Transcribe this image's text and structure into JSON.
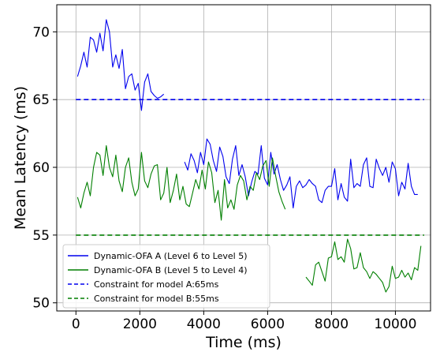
{
  "chart_data": {
    "type": "line",
    "xlabel": "Time (ms)",
    "ylabel": "Mean Latency (ms)",
    "xlim": [
      -600,
      11100
    ],
    "ylim": [
      49.4,
      72.0
    ],
    "xticks": [
      0,
      2000,
      4000,
      6000,
      8000,
      10000
    ],
    "yticks": [
      50,
      55,
      60,
      65,
      70
    ],
    "grid": true,
    "legend_position": "lower-left",
    "series": [
      {
        "name": "Dynamic-OFA A (Level 6 to Level 5)",
        "color": "#0000ee",
        "style": "solid",
        "segments": [
          {
            "x": [
              50,
              150,
              250,
              350,
              450,
              550,
              650,
              750,
              850,
              950,
              1050,
              1150,
              1250,
              1350,
              1450,
              1550,
              1650,
              1750,
              1850,
              1950,
              2050,
              2150,
              2250,
              2350,
              2450,
              2550,
              2650,
              2750
            ],
            "y": [
              66.7,
              67.5,
              68.5,
              67.4,
              69.6,
              69.4,
              68.5,
              69.9,
              68.6,
              70.9,
              70.0,
              67.4,
              68.3,
              67.3,
              68.7,
              65.8,
              66.7,
              66.9,
              65.7,
              66.2,
              64.2,
              66.3,
              66.9,
              65.6,
              65.3,
              65.1,
              65.2,
              65.4
            ]
          },
          {
            "x": [
              3400,
              3500,
              3600,
              3700,
              3800,
              3900,
              4000,
              4100,
              4200,
              4300,
              4400,
              4500,
              4600,
              4700,
              4800,
              4900,
              5000,
              5100,
              5200,
              5300,
              5400,
              5500,
              5600,
              5700,
              5800,
              5900,
              6000,
              6100,
              6200,
              6300,
              6400,
              6500,
              6600,
              6700,
              6800,
              6900,
              7000,
              7100,
              7200,
              7300,
              7400,
              7500,
              7600,
              7700,
              7800,
              7900,
              8000,
              8100,
              8200,
              8300,
              8400,
              8500,
              8600,
              8700,
              8800,
              8900,
              9000,
              9100,
              9200,
              9300,
              9400,
              9500,
              9600,
              9700,
              9800,
              9900,
              10000,
              10100,
              10200,
              10300,
              10400,
              10500,
              10600,
              10700
            ],
            "y": [
              60.4,
              59.8,
              61.0,
              60.5,
              59.6,
              61.1,
              60.2,
              62.1,
              61.7,
              60.5,
              59.7,
              61.5,
              60.8,
              59.3,
              58.8,
              60.6,
              61.6,
              59.4,
              60.2,
              59.3,
              57.9,
              58.9,
              59.7,
              59.5,
              61.6,
              59.2,
              58.7,
              61.1,
              59.5,
              60.2,
              59.1,
              58.3,
              58.7,
              59.3,
              57.0,
              58.6,
              59.0,
              58.5,
              58.7,
              59.1,
              58.8,
              58.6,
              57.6,
              57.4,
              58.3,
              58.6,
              58.6,
              59.9,
              57.6,
              58.8,
              57.8,
              57.5,
              60.6,
              58.5,
              58.8,
              58.6,
              60.2,
              60.7,
              58.6,
              58.5,
              60.6,
              59.9,
              59.4,
              60.0,
              58.9,
              60.4,
              59.9,
              57.9,
              58.9,
              58.4,
              60.3,
              58.6,
              58.0,
              58.0
            ]
          }
        ]
      },
      {
        "name": "Dynamic-OFA B (Level 5 to Level 4)",
        "color": "#007f00",
        "style": "solid",
        "segments": [
          {
            "x": [
              50,
              150,
              250,
              350,
              450,
              550,
              650,
              750,
              850,
              950,
              1050,
              1150,
              1250,
              1350,
              1450,
              1550,
              1650,
              1750,
              1850,
              1950,
              2050,
              2150,
              2250,
              2350,
              2450,
              2550,
              2650,
              2750,
              2850,
              2950,
              3050,
              3150,
              3250,
              3350,
              3450,
              3550,
              3650,
              3750,
              3850,
              3950,
              4050,
              4150,
              4250,
              4350,
              4450,
              4550,
              4650,
              4750,
              4850,
              4950,
              5050,
              5150,
              5250,
              5350,
              5450,
              5550,
              5650,
              5750,
              5850,
              5950,
              6050,
              6150,
              6250,
              6350,
              6450,
              6550
            ],
            "y": [
              57.8,
              57.0,
              58.1,
              58.9,
              57.9,
              60.0,
              61.1,
              60.9,
              59.4,
              61.6,
              60.0,
              59.3,
              60.9,
              59.0,
              58.2,
              60.0,
              60.7,
              58.9,
              57.9,
              58.4,
              61.1,
              59.0,
              58.5,
              59.5,
              60.1,
              60.2,
              57.6,
              58.1,
              60.0,
              57.4,
              58.3,
              59.5,
              57.6,
              58.6,
              57.3,
              57.1,
              58.1,
              59.1,
              58.4,
              59.8,
              58.4,
              60.4,
              59.6,
              57.4,
              58.3,
              56.1,
              59.1,
              57.0,
              57.6,
              56.9,
              58.7,
              59.4,
              59.0,
              57.6,
              58.6,
              58.3,
              59.6,
              59.1,
              60.1,
              60.5,
              58.6,
              60.7,
              59.4,
              58.2,
              57.5,
              56.9
            ]
          },
          {
            "x": [
              7200,
              7300,
              7400,
              7500,
              7600,
              7700,
              7800,
              7900,
              8000,
              8100,
              8200,
              8300,
              8400,
              8500,
              8600,
              8700,
              8800,
              8900,
              9000,
              9100,
              9200,
              9300,
              9400,
              9500,
              9600,
              9700,
              9800,
              9900,
              10000,
              10100,
              10200,
              10300,
              10400,
              10500,
              10600,
              10700,
              10800
            ],
            "y": [
              51.9,
              51.6,
              51.3,
              52.8,
              53.0,
              52.3,
              51.6,
              53.3,
              53.4,
              54.5,
              53.2,
              53.4,
              53.0,
              54.7,
              54.0,
              52.5,
              52.6,
              53.7,
              52.6,
              52.3,
              51.8,
              52.3,
              52.1,
              51.8,
              51.5,
              50.8,
              51.2,
              52.7,
              51.8,
              51.9,
              52.4,
              51.9,
              52.2,
              51.7,
              52.6,
              52.4,
              54.2
            ]
          }
        ]
      },
      {
        "name": "Constraint for model A:65ms",
        "color": "#0000ee",
        "style": "dashed",
        "segments": [
          {
            "x": [
              0,
              10900
            ],
            "y": [
              65,
              65
            ]
          }
        ]
      },
      {
        "name": "Constraint for model B:55ms",
        "color": "#007f00",
        "style": "dashed",
        "segments": [
          {
            "x": [
              0,
              10900
            ],
            "y": [
              55,
              55
            ]
          }
        ]
      }
    ]
  }
}
